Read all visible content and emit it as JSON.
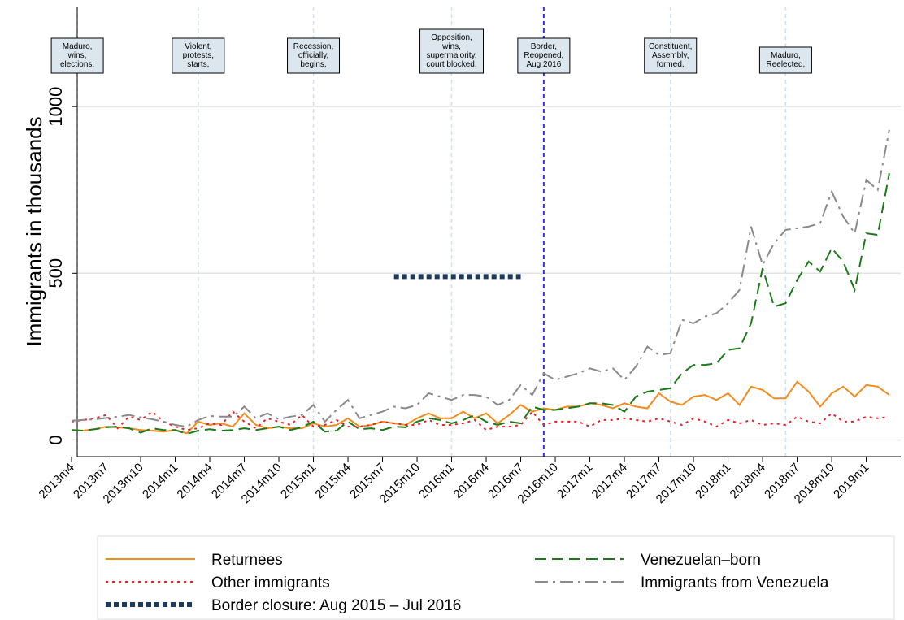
{
  "chart_data": {
    "type": "line",
    "y_label": "Immigrants in thousands",
    "x": [
      639,
      640,
      641,
      642,
      643,
      644,
      645,
      646,
      647,
      648,
      649,
      650,
      651,
      652,
      653,
      654,
      655,
      656,
      657,
      658,
      659,
      660,
      661,
      662,
      663,
      664,
      665,
      666,
      667,
      668,
      669,
      670,
      671,
      672,
      673,
      674,
      675,
      676,
      677,
      678,
      679,
      680,
      681,
      682,
      683,
      684,
      685,
      686,
      687,
      688,
      689,
      690,
      691,
      692,
      693,
      694,
      695,
      696,
      697,
      698,
      699,
      700,
      701,
      702,
      703,
      704,
      705,
      706,
      707,
      708,
      709,
      710
    ],
    "xlim": [
      639,
      710.5
    ],
    "xticks": [
      {
        "value": 639,
        "label": "2013m4"
      },
      {
        "value": 642,
        "label": "2013m7"
      },
      {
        "value": 645,
        "label": "2013m10"
      },
      {
        "value": 648,
        "label": "2014m1"
      },
      {
        "value": 651,
        "label": "2014m4"
      },
      {
        "value": 654,
        "label": "2014m7"
      },
      {
        "value": 657,
        "label": "2014m10"
      },
      {
        "value": 660,
        "label": "2015m1"
      },
      {
        "value": 663,
        "label": "2015m4"
      },
      {
        "value": 666,
        "label": "2015m7"
      },
      {
        "value": 669,
        "label": "2015m10"
      },
      {
        "value": 672,
        "label": "2016m1"
      },
      {
        "value": 675,
        "label": "2016m4"
      },
      {
        "value": 678,
        "label": "2016m7"
      },
      {
        "value": 681,
        "label": "2016m10"
      },
      {
        "value": 684,
        "label": "2017m1"
      },
      {
        "value": 687,
        "label": "2017m4"
      },
      {
        "value": 690,
        "label": "2017m7"
      },
      {
        "value": 693,
        "label": "2017m10"
      },
      {
        "value": 696,
        "label": "2018m1"
      },
      {
        "value": 699,
        "label": "2018m4"
      },
      {
        "value": 702,
        "label": "2018m7"
      },
      {
        "value": 705,
        "label": "2018m10"
      },
      {
        "value": 708,
        "label": "2019m1"
      }
    ],
    "ylim": [
      -50,
      1300
    ],
    "yticks": [
      0,
      500,
      1000
    ],
    "grid": true,
    "series": [
      {
        "name": "Returnees",
        "color": "#f28c1e",
        "line_style": "solid",
        "values": [
          30,
          28,
          32,
          40,
          38,
          35,
          30,
          28,
          25,
          30,
          20,
          55,
          45,
          50,
          40,
          80,
          45,
          35,
          40,
          35,
          35,
          50,
          40,
          45,
          65,
          40,
          45,
          55,
          50,
          45,
          65,
          80,
          65,
          65,
          85,
          65,
          80,
          50,
          75,
          105,
          85,
          95,
          90,
          100,
          100,
          110,
          105,
          95,
          110,
          100,
          95,
          140,
          115,
          105,
          130,
          135,
          120,
          140,
          105,
          160,
          150,
          125,
          125,
          175,
          145,
          100,
          140,
          160,
          130,
          165,
          160,
          135
        ]
      },
      {
        "name": "Venezuelan–born",
        "color": "#1a7a1a",
        "line_style": "dashed",
        "values": [
          30,
          28,
          32,
          38,
          40,
          35,
          22,
          35,
          30,
          30,
          18,
          28,
          32,
          28,
          30,
          35,
          30,
          35,
          40,
          30,
          38,
          55,
          25,
          28,
          55,
          32,
          35,
          30,
          40,
          38,
          55,
          65,
          60,
          50,
          60,
          75,
          55,
          45,
          55,
          50,
          100,
          90,
          90,
          95,
          100,
          110,
          110,
          105,
          85,
          130,
          145,
          150,
          155,
          200,
          225,
          225,
          230,
          270,
          275,
          350,
          515,
          400,
          410,
          480,
          535,
          505,
          575,
          535,
          450,
          620,
          615,
          800
        ]
      },
      {
        "name": "Other immigrants",
        "color": "#e8202a",
        "line_style": "dotted",
        "values": [
          55,
          60,
          65,
          75,
          35,
          70,
          60,
          85,
          55,
          40,
          30,
          35,
          50,
          45,
          85,
          55,
          35,
          65,
          55,
          45,
          75,
          40,
          45,
          60,
          40,
          40,
          45,
          55,
          50,
          45,
          45,
          60,
          45,
          45,
          50,
          60,
          30,
          40,
          40,
          45,
          85,
          45,
          55,
          55,
          55,
          40,
          60,
          60,
          65,
          60,
          55,
          65,
          55,
          45,
          65,
          55,
          40,
          60,
          50,
          60,
          45,
          50,
          45,
          70,
          55,
          50,
          80,
          55,
          55,
          70,
          65,
          70
        ]
      },
      {
        "name": "Immigrants from Venezuela",
        "color": "#8a8a8a",
        "line_style": "dash-dot",
        "values": [
          58,
          60,
          62,
          66,
          70,
          75,
          68,
          62,
          55,
          45,
          40,
          60,
          72,
          70,
          70,
          100,
          65,
          80,
          62,
          70,
          75,
          105,
          55,
          90,
          120,
          65,
          75,
          85,
          100,
          95,
          105,
          140,
          130,
          120,
          135,
          135,
          130,
          105,
          120,
          165,
          135,
          200,
          180,
          190,
          200,
          215,
          205,
          215,
          180,
          220,
          280,
          255,
          260,
          360,
          350,
          370,
          380,
          410,
          450,
          640,
          525,
          590,
          630,
          635,
          640,
          650,
          745,
          670,
          620,
          780,
          750,
          930
        ]
      }
    ],
    "border_closure": {
      "name": "Border closure: Aug 2015 – Jul 2016",
      "color": "#1b3a5c",
      "x": [
        667,
        678
      ],
      "y": 490
    },
    "events": [
      {
        "x": 639.5,
        "lines": [
          "Maduro,",
          "wins,",
          "elections,"
        ]
      },
      {
        "x": 650,
        "lines": [
          "Violent,",
          "protests,",
          "starts,"
        ]
      },
      {
        "x": 660,
        "lines": [
          "Recession,",
          "officially,",
          "begins,"
        ]
      },
      {
        "x": 672,
        "lines": [
          "Opposition,",
          "wins,",
          "supermajority,",
          "court blocked,"
        ]
      },
      {
        "x": 680,
        "lines": [
          "Border,",
          "Reopened,",
          "Aug 2016"
        ],
        "color": "#3333ee"
      },
      {
        "x": 691,
        "lines": [
          "Constituent,",
          "Assembly,",
          "formed,"
        ]
      },
      {
        "x": 701,
        "lines": [
          "Maduro,",
          "Reelected,"
        ]
      }
    ]
  }
}
